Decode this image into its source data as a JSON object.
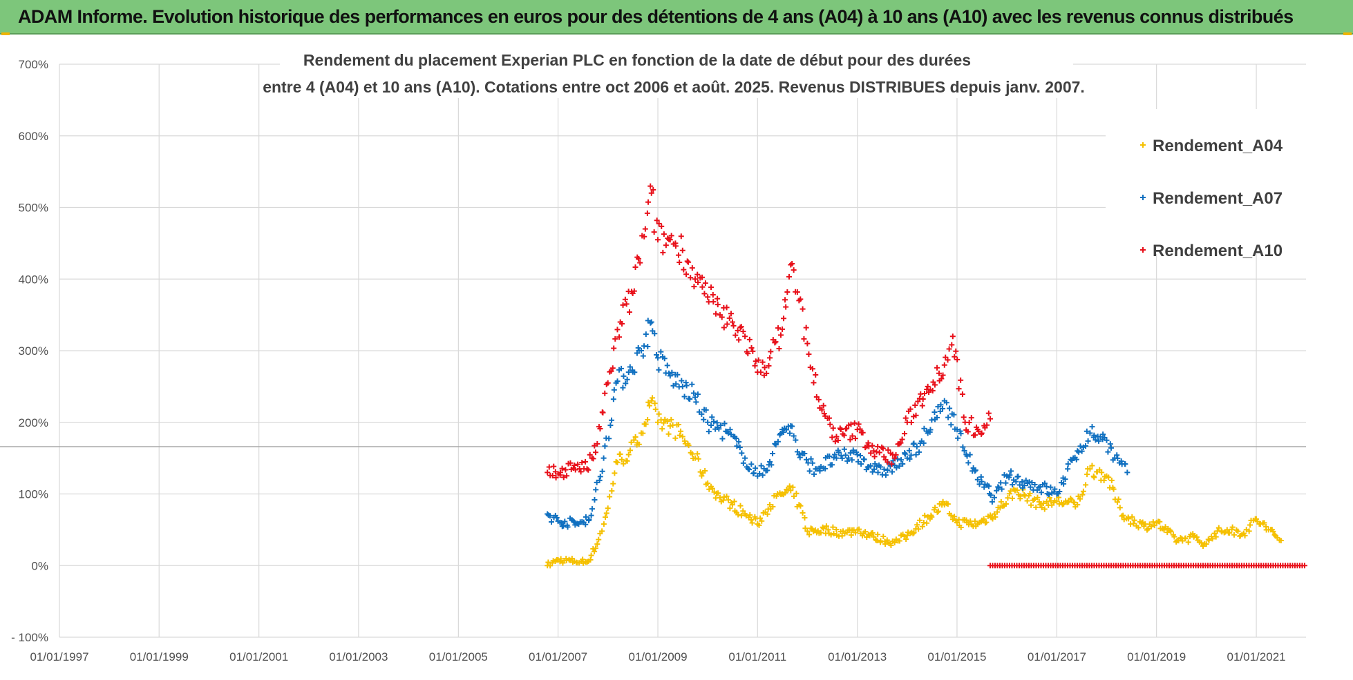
{
  "header": {
    "banner_title": "ADAM Informe. Evolution historique des performances en euros pour des détentions de 4 ans (A04) à 10 ans (A10) avec les revenus connus distribués"
  },
  "colors": {
    "banner_bg": "#7dc67b",
    "A04": "#f5c000",
    "A07": "#1070c0",
    "A10": "#e8101a"
  },
  "chart_data": {
    "type": "scatter",
    "title_lines": [
      "Rendement du placement Experian PLC en fonction de la date de début pour des durées",
      "entre 4 (A04) et 10 ans (A10).  Cotations entre oct 2006 et août. 2025. Revenus DISTRIBUES depuis janv. 2007."
    ],
    "xlabel": "",
    "ylabel": "",
    "x_axis": "date",
    "xlim": [
      "1997-01-01",
      "2021-12-31"
    ],
    "ylim": [
      -100,
      700
    ],
    "x_ticks": [
      "01/01/1997",
      "01/01/1999",
      "01/01/2001",
      "01/01/2003",
      "01/01/2005",
      "01/01/2007",
      "01/01/2009",
      "01/01/2011",
      "01/01/2013",
      "01/01/2015",
      "01/01/2017",
      "01/01/2019",
      "01/01/2021"
    ],
    "y_ticks": [
      "- 100%",
      "0%",
      "100%",
      "200%",
      "300%",
      "400%",
      "500%",
      "600%",
      "700%"
    ],
    "y_tick_values": [
      -100,
      0,
      100,
      200,
      300,
      400,
      500,
      600,
      700
    ],
    "gridlines": true,
    "legend_position": "top-right",
    "marker": "+",
    "series": [
      {
        "name": "Rendement_A04",
        "color": "#f5c000",
        "points": [
          [
            "2006-10-15",
            0
          ],
          [
            "2007-01-01",
            8
          ],
          [
            "2007-05-01",
            6
          ],
          [
            "2007-08-01",
            5
          ],
          [
            "2007-10-15",
            30
          ],
          [
            "2008-01-01",
            80
          ],
          [
            "2008-03-01",
            145
          ],
          [
            "2008-06-01",
            155
          ],
          [
            "2008-09-01",
            185
          ],
          [
            "2008-11-15",
            230
          ],
          [
            "2009-01-01",
            200
          ],
          [
            "2009-04-01",
            195
          ],
          [
            "2009-07-01",
            180
          ],
          [
            "2009-10-01",
            150
          ],
          [
            "2010-01-01",
            115
          ],
          [
            "2010-04-01",
            95
          ],
          [
            "2010-07-01",
            85
          ],
          [
            "2010-10-01",
            72
          ],
          [
            "2011-01-01",
            58
          ],
          [
            "2011-04-01",
            85
          ],
          [
            "2011-07-01",
            100
          ],
          [
            "2011-09-01",
            105
          ],
          [
            "2011-11-01",
            85
          ],
          [
            "2012-01-01",
            48
          ],
          [
            "2012-06-01",
            50
          ],
          [
            "2012-10-01",
            45
          ],
          [
            "2013-01-01",
            50
          ],
          [
            "2013-05-01",
            40
          ],
          [
            "2013-10-01",
            32
          ],
          [
            "2014-01-01",
            42
          ],
          [
            "2014-06-01",
            68
          ],
          [
            "2014-10-01",
            85
          ],
          [
            "2015-01-01",
            60
          ],
          [
            "2015-06-01",
            58
          ],
          [
            "2015-10-01",
            72
          ],
          [
            "2016-03-01",
            105
          ],
          [
            "2016-09-01",
            85
          ],
          [
            "2017-01-01",
            90
          ],
          [
            "2017-06-01",
            85
          ],
          [
            "2017-09-01",
            135
          ],
          [
            "2018-01-01",
            125
          ],
          [
            "2018-05-01",
            70
          ],
          [
            "2018-10-01",
            55
          ],
          [
            "2019-01-01",
            60
          ],
          [
            "2019-06-01",
            35
          ],
          [
            "2019-10-01",
            40
          ],
          [
            "2020-01-01",
            30
          ],
          [
            "2020-03-01",
            45
          ],
          [
            "2020-06-01",
            50
          ],
          [
            "2020-10-01",
            45
          ],
          [
            "2021-01-01",
            65
          ],
          [
            "2021-04-01",
            50
          ],
          [
            "2021-07-01",
            35
          ]
        ]
      },
      {
        "name": "Rendement_A07",
        "color": "#1070c0",
        "points": [
          [
            "2006-10-15",
            72
          ],
          [
            "2007-01-01",
            62
          ],
          [
            "2007-06-01",
            58
          ],
          [
            "2007-09-01",
            70
          ],
          [
            "2007-12-01",
            150
          ],
          [
            "2008-03-01",
            255
          ],
          [
            "2008-06-01",
            270
          ],
          [
            "2008-09-01",
            300
          ],
          [
            "2008-11-15",
            340
          ],
          [
            "2009-01-01",
            290
          ],
          [
            "2009-04-01",
            265
          ],
          [
            "2009-07-01",
            250
          ],
          [
            "2009-10-01",
            235
          ],
          [
            "2010-01-01",
            200
          ],
          [
            "2010-06-01",
            185
          ],
          [
            "2010-10-01",
            150
          ],
          [
            "2011-01-01",
            125
          ],
          [
            "2011-04-01",
            145
          ],
          [
            "2011-07-01",
            190
          ],
          [
            "2011-09-01",
            195
          ],
          [
            "2011-11-01",
            155
          ],
          [
            "2012-03-01",
            135
          ],
          [
            "2012-08-01",
            150
          ],
          [
            "2013-01-01",
            155
          ],
          [
            "2013-06-01",
            130
          ],
          [
            "2013-10-01",
            140
          ],
          [
            "2014-01-01",
            150
          ],
          [
            "2014-06-01",
            185
          ],
          [
            "2014-10-01",
            230
          ],
          [
            "2015-01-01",
            190
          ],
          [
            "2015-06-01",
            120
          ],
          [
            "2015-10-01",
            95
          ],
          [
            "2016-01-01",
            125
          ],
          [
            "2016-06-01",
            115
          ],
          [
            "2016-09-01",
            110
          ],
          [
            "2017-01-01",
            100
          ],
          [
            "2017-06-01",
            160
          ],
          [
            "2017-09-01",
            185
          ],
          [
            "2018-01-01",
            175
          ],
          [
            "2018-03-01",
            150
          ],
          [
            "2018-06-01",
            130
          ]
        ]
      },
      {
        "name": "Rendement_A10",
        "color": "#e8101a",
        "points": [
          [
            "2006-10-15",
            130
          ],
          [
            "2007-01-01",
            128
          ],
          [
            "2007-05-01",
            140
          ],
          [
            "2007-08-01",
            135
          ],
          [
            "2007-10-15",
            170
          ],
          [
            "2008-01-01",
            255
          ],
          [
            "2008-04-01",
            340
          ],
          [
            "2008-07-01",
            380
          ],
          [
            "2008-10-01",
            470
          ],
          [
            "2008-11-15",
            520
          ],
          [
            "2009-01-01",
            455
          ],
          [
            "2009-04-01",
            455
          ],
          [
            "2009-07-01",
            440
          ],
          [
            "2009-10-01",
            400
          ],
          [
            "2010-01-01",
            375
          ],
          [
            "2010-04-01",
            350
          ],
          [
            "2010-07-01",
            340
          ],
          [
            "2010-10-01",
            320
          ],
          [
            "2011-01-01",
            270
          ],
          [
            "2011-04-01",
            290
          ],
          [
            "2011-07-01",
            330
          ],
          [
            "2011-09-01",
            420
          ],
          [
            "2011-11-01",
            370
          ],
          [
            "2012-01-01",
            310
          ],
          [
            "2012-04-01",
            220
          ],
          [
            "2012-08-01",
            180
          ],
          [
            "2013-01-01",
            190
          ],
          [
            "2013-05-01",
            160
          ],
          [
            "2013-10-01",
            150
          ],
          [
            "2014-01-01",
            200
          ],
          [
            "2014-06-01",
            250
          ],
          [
            "2014-10-01",
            280
          ],
          [
            "2014-12-01",
            320
          ],
          [
            "2015-03-01",
            200
          ],
          [
            "2015-06-01",
            190
          ],
          [
            "2015-09-01",
            205
          ]
        ]
      }
    ],
    "flat_series_segment": {
      "series": "Rendement_A10",
      "x_start": "2015-09-01",
      "x_end": "2021-12-31",
      "y": 0
    }
  }
}
